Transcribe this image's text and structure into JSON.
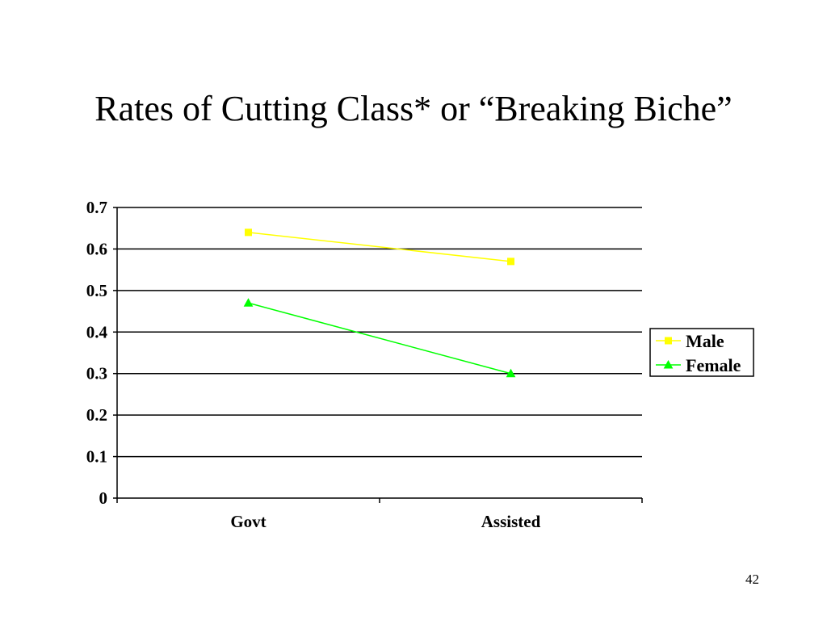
{
  "slide": {
    "title": "Rates of Cutting Class* or “Breaking Biche”",
    "page_number": "42"
  },
  "chart_data": {
    "type": "line",
    "categories": [
      "Govt",
      "Assisted"
    ],
    "series": [
      {
        "name": "Male",
        "values": [
          0.64,
          0.57
        ],
        "color": "#ffff00",
        "marker": "square"
      },
      {
        "name": "Female",
        "values": [
          0.47,
          0.3
        ],
        "color": "#00ff00",
        "marker": "triangle"
      }
    ],
    "yticks": [
      "0",
      "0.1",
      "0.2",
      "0.3",
      "0.4",
      "0.5",
      "0.6",
      "0.7"
    ],
    "ylim": [
      0,
      0.7
    ],
    "grid": true,
    "legend": "right"
  }
}
